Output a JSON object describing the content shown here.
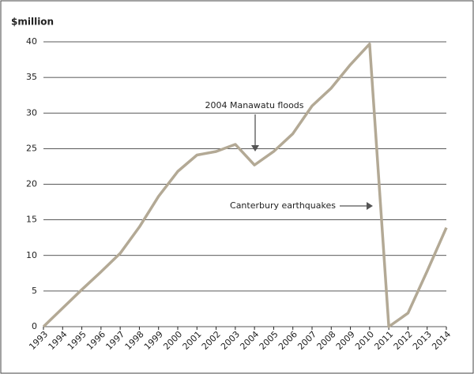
{
  "chart_data": {
    "type": "line",
    "y_label": "$million",
    "x": [
      1993,
      1994,
      1995,
      1996,
      1997,
      1998,
      1999,
      2000,
      2001,
      2002,
      2003,
      2004,
      2005,
      2006,
      2007,
      2008,
      2009,
      2010,
      2011,
      2012,
      2013,
      2014
    ],
    "series": [
      {
        "color": "#b3a995",
        "values": [
          0,
          2.6,
          5.2,
          7.7,
          10.3,
          14,
          18.3,
          21.8,
          24.1,
          24.6,
          25.6,
          22.7,
          24.6,
          27.1,
          31,
          33.5,
          36.8,
          39.7,
          0,
          1.9,
          7.8,
          13.9
        ]
      }
    ],
    "xlim": [
      1993,
      2014
    ],
    "xticks": [
      1993,
      1994,
      1995,
      1996,
      1997,
      1998,
      1999,
      2000,
      2001,
      2002,
      2003,
      2004,
      2005,
      2006,
      2007,
      2008,
      2009,
      2010,
      2011,
      2012,
      2013,
      2014
    ],
    "ylim": [
      0,
      40
    ],
    "yticks": [
      0,
      5,
      10,
      15,
      20,
      25,
      30,
      35,
      40
    ],
    "grid": true,
    "annotations": [
      {
        "text": "2004 Manawatu floods"
      },
      {
        "text": "Canterbury earthquakes"
      }
    ]
  }
}
